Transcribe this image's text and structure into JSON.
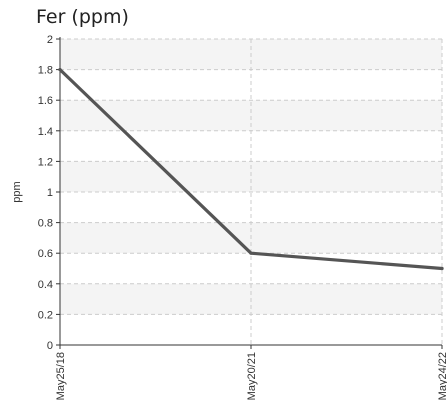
{
  "chart_data": {
    "type": "line",
    "title": "Fer (ppm)",
    "xlabel": "",
    "ylabel": "ppm",
    "x": [
      "May25/18",
      "May20/21",
      "May24/22"
    ],
    "series": [
      {
        "values": [
          1.8,
          0.6,
          0.5
        ]
      }
    ],
    "ylim": [
      0,
      2
    ],
    "yticks": [
      0,
      0.2,
      0.4,
      0.6,
      0.8,
      1,
      1.2,
      1.4,
      1.6,
      1.8,
      2
    ],
    "ytick_labels": [
      "0",
      "0.2",
      "0.4",
      "0.6",
      "0.8",
      "1",
      "1.2",
      "1.4",
      "1.6",
      "1.8",
      "2"
    ],
    "grid": true,
    "alternating_bands": true,
    "colors": {
      "line": "#555555",
      "band": "#f4f4f4",
      "grid": "#cccccc",
      "axis": "#333333"
    }
  }
}
